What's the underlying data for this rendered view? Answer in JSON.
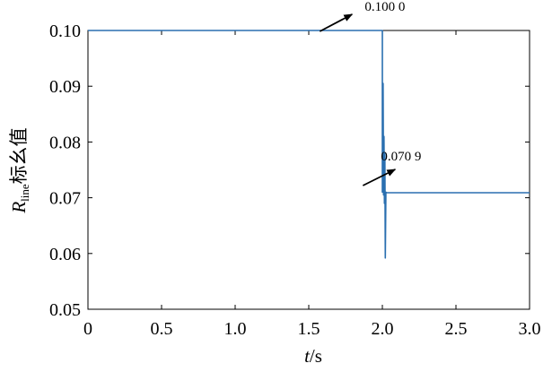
{
  "chart_data": {
    "type": "line",
    "title": "",
    "xlabel": {
      "var": "t",
      "unit": "/s"
    },
    "ylabel": {
      "var": "R",
      "sub": "line",
      "text": "标幺值"
    },
    "xlim": [
      0,
      3.0
    ],
    "ylim": [
      0.05,
      0.1
    ],
    "xticks": [
      0,
      0.5,
      1.0,
      1.5,
      2.0,
      2.5,
      3.0
    ],
    "xtick_labels": [
      "0",
      "0.5",
      "1.0",
      "1.5",
      "2.0",
      "2.5",
      "3.0"
    ],
    "yticks": [
      0.05,
      0.06,
      0.07,
      0.08,
      0.09,
      0.1
    ],
    "ytick_labels": [
      "0.05",
      "0.06",
      "0.07",
      "0.08",
      "0.09",
      "0.10"
    ],
    "grid": false,
    "line_color": "#2a6fb0",
    "series": [
      {
        "x": [
          0,
          2.0,
          2.0,
          2.005,
          2.008,
          2.011,
          2.014,
          2.017,
          2.02,
          2.024,
          2.03,
          2.06,
          3.0
        ],
        "y": [
          0.1,
          0.1,
          0.071,
          0.0905,
          0.0705,
          0.081,
          0.069,
          0.078,
          0.0592,
          0.071,
          0.0709,
          0.0709,
          0.0709
        ]
      }
    ],
    "annotations": [
      {
        "text": "0.100 0",
        "x_data": 1.88,
        "y_data": 0.1
      },
      {
        "text": "0.070 9",
        "x_data": 2.38,
        "y_data": 0.0709
      }
    ]
  }
}
